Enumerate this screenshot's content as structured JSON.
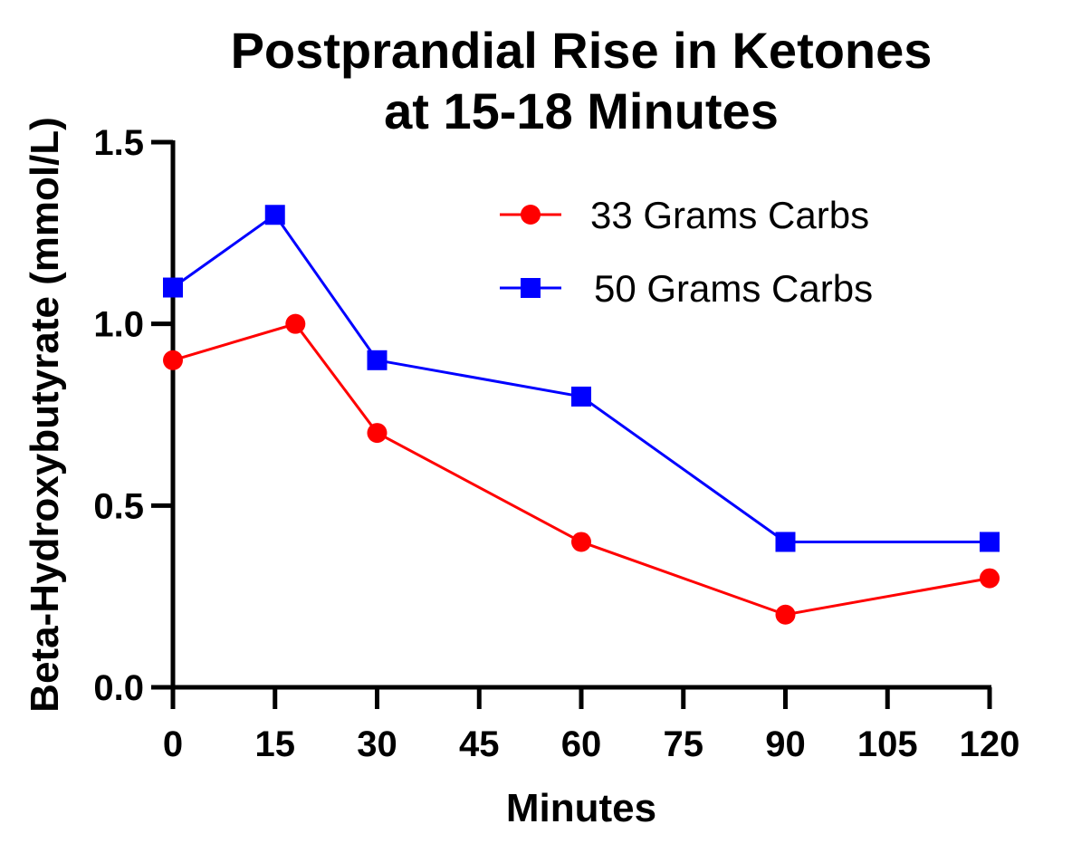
{
  "chart_data": {
    "type": "line",
    "title": [
      "Postprandial Rise in Ketones",
      "at 15-18 Minutes"
    ],
    "xlabel": "Minutes",
    "ylabel": "Beta-Hydroxybutyrate (mmol/L)",
    "xlim": [
      0,
      120
    ],
    "ylim": [
      0,
      1.5
    ],
    "xticks": [
      0,
      15,
      30,
      45,
      60,
      75,
      90,
      105,
      120
    ],
    "xtick_labels": [
      "0",
      "15",
      "30",
      "45",
      "60",
      "75",
      "90",
      "105",
      "120"
    ],
    "yticks": [
      0,
      0.5,
      1.0,
      1.5
    ],
    "ytick_labels": [
      "0.0",
      "0.5",
      "1.0",
      "1.5"
    ],
    "grid": false,
    "legend_position": "top-right",
    "series": [
      {
        "name": "33 Grams Carbs",
        "color": "#ff0000",
        "marker": "circle",
        "x": [
          0,
          18,
          30,
          60,
          90,
          120
        ],
        "y": [
          0.9,
          1.0,
          0.7,
          0.4,
          0.2,
          0.3
        ]
      },
      {
        "name": "50 Grams Carbs",
        "color": "#0000ff",
        "marker": "square",
        "x": [
          0,
          15,
          30,
          60,
          90,
          120
        ],
        "y": [
          1.1,
          1.3,
          0.9,
          0.8,
          0.4,
          0.4
        ]
      }
    ]
  }
}
